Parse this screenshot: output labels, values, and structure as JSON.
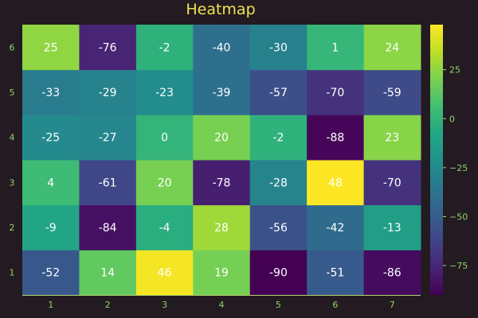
{
  "chart_data": {
    "type": "heatmap",
    "title": "Heatmap",
    "x": [
      "1",
      "2",
      "3",
      "4",
      "5",
      "6",
      "7"
    ],
    "y": [
      "1",
      "2",
      "3",
      "4",
      "5",
      "6"
    ],
    "values": [
      [
        -52,
        14,
        46,
        19,
        -90,
        -51,
        -86
      ],
      [
        -9,
        -84,
        -4,
        28,
        -56,
        -42,
        -13
      ],
      [
        4,
        -61,
        20,
        -78,
        -28,
        48,
        -70
      ],
      [
        -25,
        -27,
        0,
        20,
        -2,
        -88,
        23
      ],
      [
        -33,
        -29,
        -23,
        -39,
        -57,
        -70,
        -59
      ],
      [
        25,
        -76,
        -2,
        -40,
        -30,
        1,
        24
      ]
    ],
    "colorbar": {
      "range": [
        -90,
        48
      ],
      "ticks": [
        -75,
        -50,
        -25,
        0,
        25
      ],
      "tick_labels": [
        "−75",
        "−50",
        "−25",
        "0",
        "25"
      ],
      "colormap": "viridis"
    },
    "grid": false
  }
}
